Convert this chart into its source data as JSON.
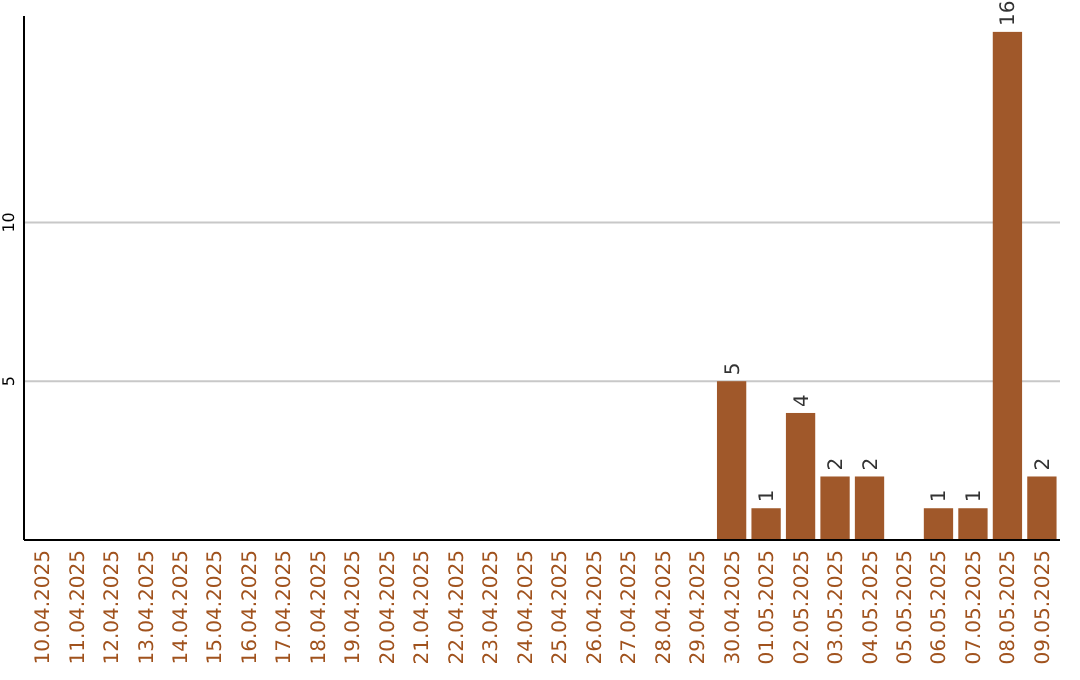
{
  "chart_data": {
    "type": "bar",
    "categories": [
      "10.04.2025",
      "11.04.2025",
      "12.04.2025",
      "13.04.2025",
      "14.04.2025",
      "15.04.2025",
      "16.04.2025",
      "17.04.2025",
      "18.04.2025",
      "19.04.2025",
      "20.04.2025",
      "21.04.2025",
      "22.04.2025",
      "23.04.2025",
      "24.04.2025",
      "25.04.2025",
      "26.04.2025",
      "27.04.2025",
      "28.04.2025",
      "29.04.2025",
      "30.04.2025",
      "01.05.2025",
      "02.05.2025",
      "03.05.2025",
      "04.05.2025",
      "05.05.2025",
      "06.05.2025",
      "07.05.2025",
      "08.05.2025",
      "09.05.2025"
    ],
    "values": [
      0,
      0,
      0,
      0,
      0,
      0,
      0,
      0,
      0,
      0,
      0,
      0,
      0,
      0,
      0,
      0,
      0,
      0,
      0,
      0,
      5,
      1,
      4,
      2,
      2,
      0,
      1,
      1,
      16,
      2
    ],
    "value_labels": [
      null,
      null,
      null,
      null,
      null,
      null,
      null,
      null,
      null,
      null,
      null,
      null,
      null,
      null,
      null,
      null,
      null,
      null,
      null,
      null,
      "5",
      "1",
      "4",
      "2",
      "2",
      null,
      "1",
      "1",
      "16",
      "2"
    ],
    "color": "#a0582a",
    "ylim": [
      0,
      16.5
    ],
    "yticks": [
      5,
      10
    ],
    "grid": "y"
  }
}
